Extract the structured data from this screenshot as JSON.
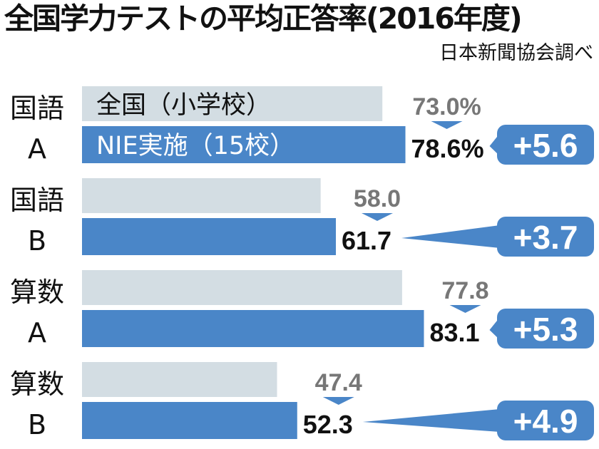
{
  "title": "全国学力テストの平均正答率(2016年度)",
  "source": "日本新聞協会調べ",
  "chart_data": {
    "type": "bar",
    "orientation": "horizontal",
    "categories": [
      [
        "国語",
        "A"
      ],
      [
        "国語",
        "B"
      ],
      [
        "算数",
        "A"
      ],
      [
        "算数",
        "B"
      ]
    ],
    "series": [
      {
        "name": "全国（小学校）",
        "values": [
          73.0,
          58.0,
          77.8,
          47.4
        ],
        "labels": [
          "73.0%",
          "58.0",
          "77.8",
          "47.4"
        ]
      },
      {
        "name": "NIE実施（15校）",
        "values": [
          78.6,
          61.7,
          83.1,
          52.3
        ],
        "labels": [
          "78.6%",
          "61.7",
          "83.1",
          "52.3"
        ]
      }
    ],
    "differences": [
      "+5.6",
      "+3.7",
      "+5.3",
      "+4.9"
    ],
    "colors": {
      "national": "#d3dde3",
      "nie": "#4a86c8",
      "label_gray": "#777777"
    }
  }
}
